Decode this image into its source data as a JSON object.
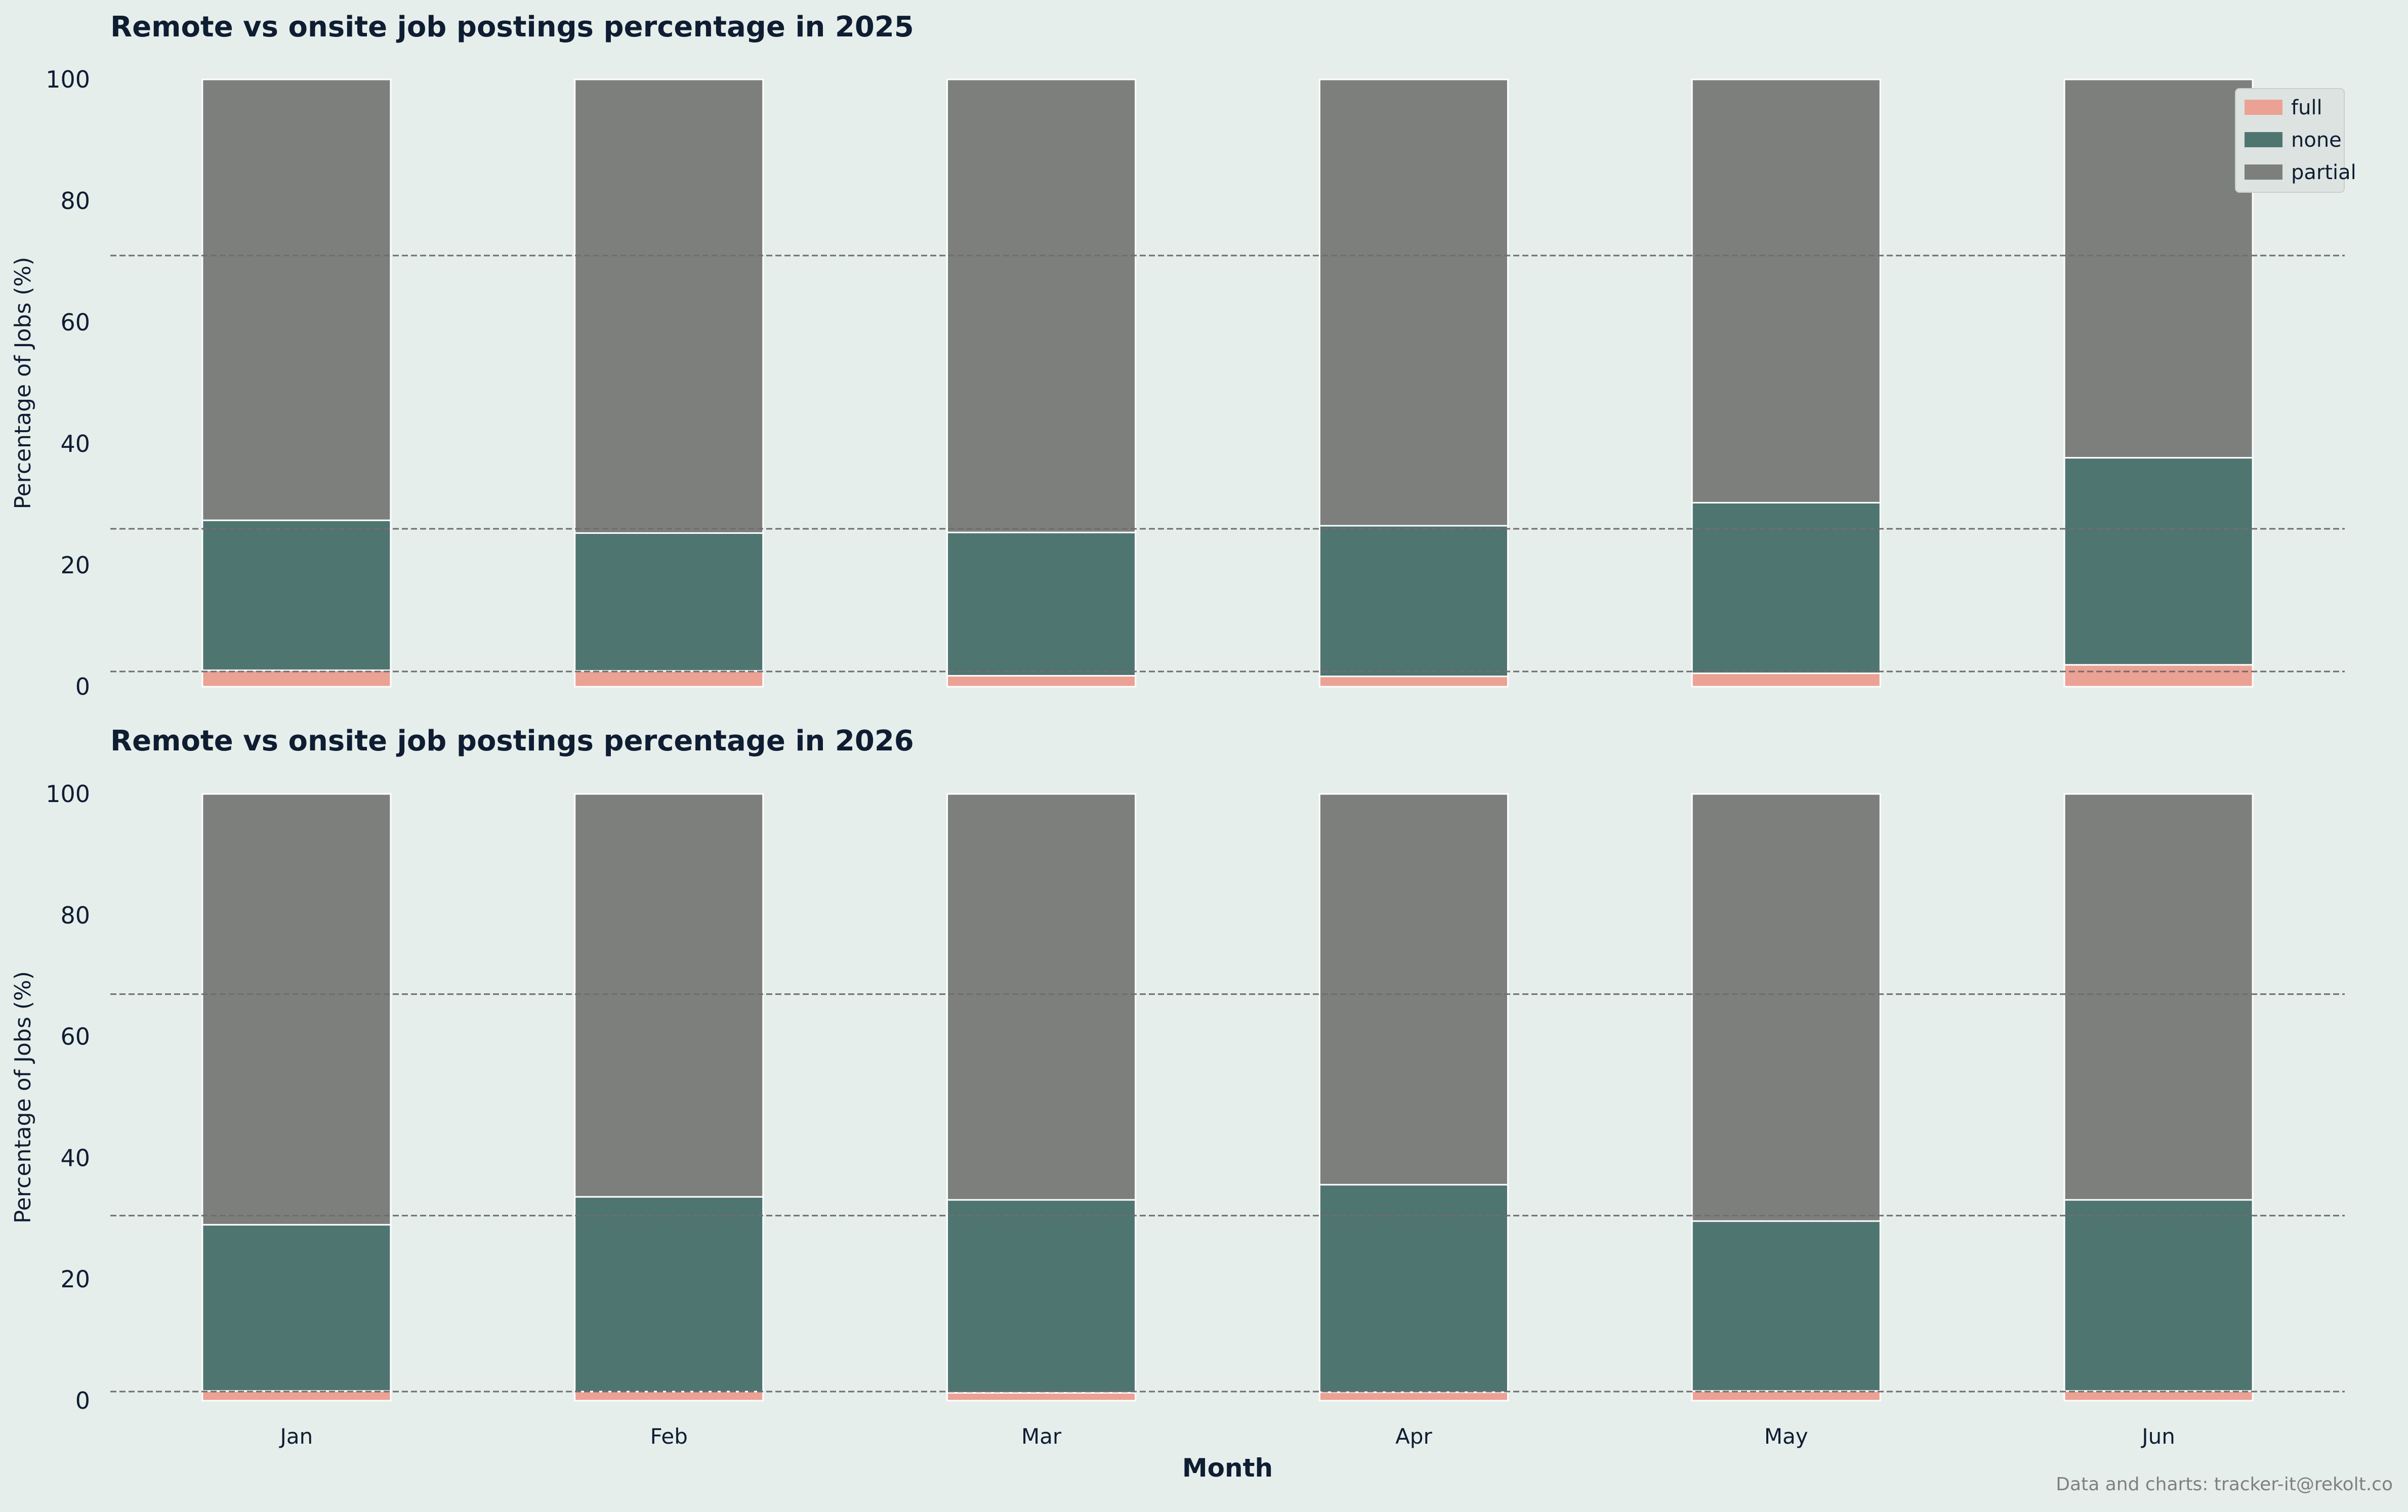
{
  "colors": {
    "background": "#e6eeeb",
    "full": "#eba193",
    "none": "#4f7571",
    "partial": "#7d7f7d",
    "title": "#0f1d33",
    "tick": "#0f1d33",
    "grid_line": "#6e6e6e",
    "footer": "#808080",
    "legend_bg": "#dde3e0"
  },
  "footer": "Data and charts: tracker-it@rekolt.co",
  "legend": {
    "placement": "top-right",
    "items": [
      "full",
      "none",
      "partial"
    ]
  },
  "chart_data": [
    {
      "type": "bar",
      "stacked": true,
      "title": "Remote vs onsite job postings percentage in 2025",
      "xlabel": "",
      "ylabel": "Percentage of Jobs (%)",
      "ylim": [
        0,
        100
      ],
      "yticks": [
        0,
        20,
        40,
        60,
        80,
        100
      ],
      "categories": [
        "Jan",
        "Feb",
        "Mar",
        "Apr",
        "May",
        "Jun"
      ],
      "series": [
        {
          "name": "full",
          "values": [
            2.7,
            2.6,
            1.8,
            1.7,
            2.2,
            3.6
          ]
        },
        {
          "name": "none",
          "values": [
            24.7,
            22.7,
            23.6,
            24.8,
            28.1,
            34.1
          ]
        },
        {
          "name": "partial",
          "values": [
            72.6,
            74.7,
            74.6,
            73.5,
            69.7,
            62.3
          ]
        }
      ],
      "reference_lines": [
        2.5,
        26,
        71
      ]
    },
    {
      "type": "bar",
      "stacked": true,
      "title": "Remote vs onsite job postings percentage in 2026",
      "xlabel": "Month",
      "ylabel": "Percentage of Jobs (%)",
      "ylim": [
        0,
        100
      ],
      "yticks": [
        0,
        20,
        40,
        60,
        80,
        100
      ],
      "categories": [
        "Jan",
        "Feb",
        "Mar",
        "Apr",
        "May",
        "Jun"
      ],
      "series": [
        {
          "name": "full",
          "values": [
            1.6,
            1.5,
            1.3,
            1.4,
            1.6,
            1.6
          ]
        },
        {
          "name": "none",
          "values": [
            27.4,
            32.1,
            31.8,
            34.2,
            28.0,
            31.5
          ]
        },
        {
          "name": "partial",
          "values": [
            71.0,
            66.4,
            66.9,
            64.4,
            70.4,
            66.9
          ]
        }
      ],
      "reference_lines": [
        1.5,
        30.5,
        67
      ]
    }
  ]
}
